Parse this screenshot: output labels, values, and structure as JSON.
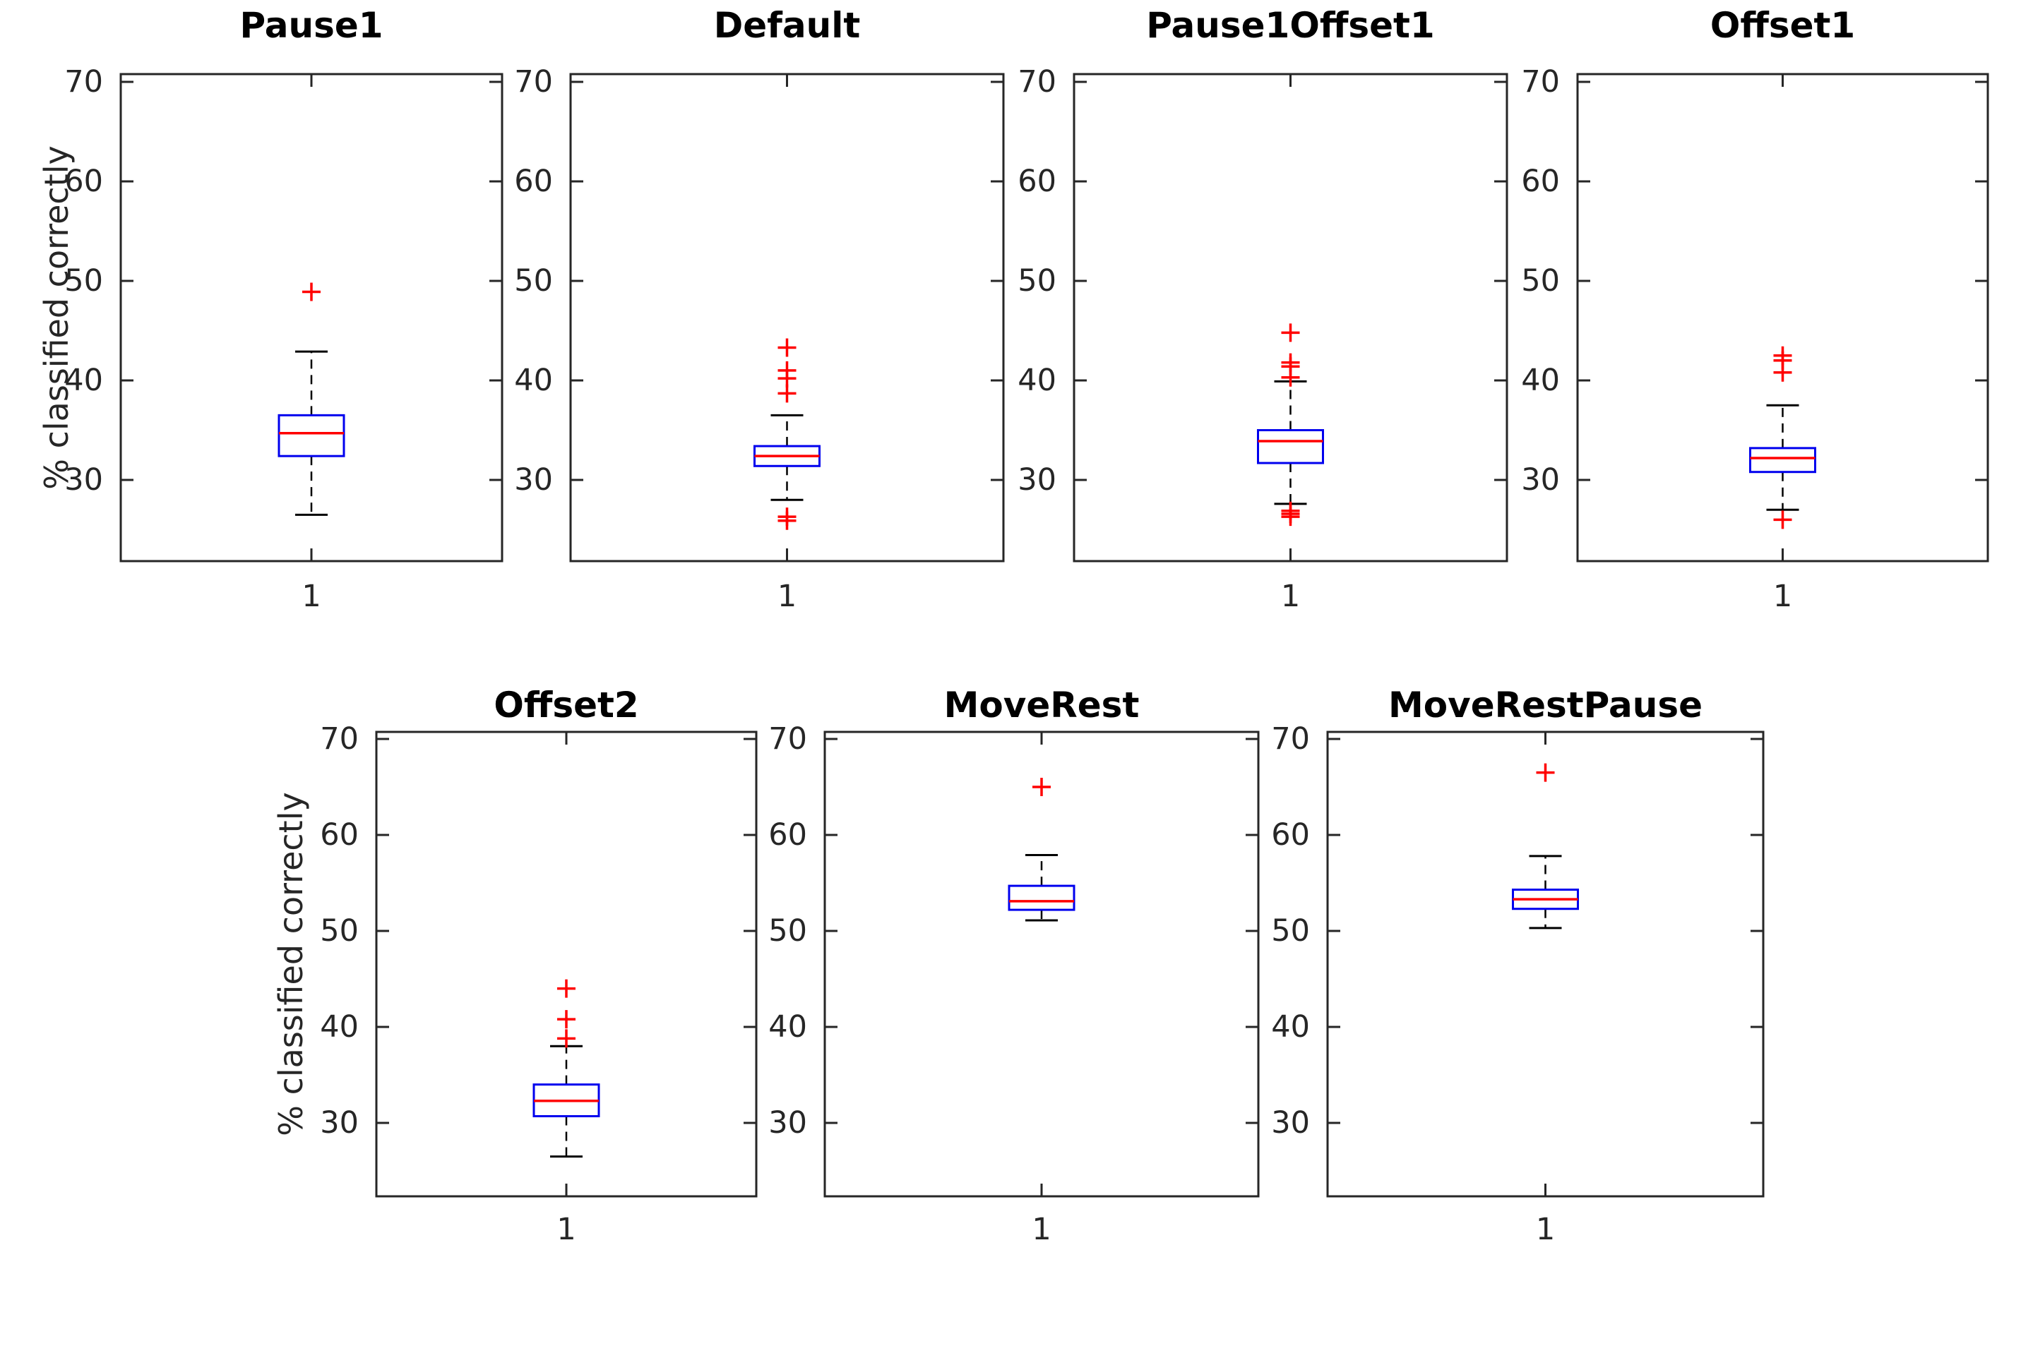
{
  "figure": {
    "background": "#ffffff",
    "axis_color": "#262626",
    "text_color": "#262626",
    "title_color": "#000000",
    "box_color": "#0000ee",
    "median_color": "#ff0000",
    "outlier_color": "#ff0000",
    "whisker_color": "#000000",
    "ylabel": "% classified correctly",
    "xtick_label": "1",
    "ytick_labels": [
      "70",
      "60",
      "50",
      "40",
      "30"
    ]
  },
  "chart_data": [
    {
      "type": "boxplot",
      "title": "Pause1",
      "x": 1,
      "xtick_label": "1",
      "ylabel": "% classified correctly",
      "ylim": [
        21.8,
        70.8
      ],
      "yticks": [
        30,
        40,
        50,
        60,
        70
      ],
      "grid": false,
      "median": 34.7,
      "q1": 32.4,
      "q3": 36.5,
      "whisker_low": 26.5,
      "whisker_high": 42.9,
      "outliers": [
        48.9
      ]
    },
    {
      "type": "boxplot",
      "title": "Default",
      "x": 1,
      "xtick_label": "1",
      "ylabel": "",
      "ylim": [
        21.8,
        70.8
      ],
      "yticks": [
        30,
        40,
        50,
        60,
        70
      ],
      "grid": false,
      "median": 32.4,
      "q1": 31.4,
      "q3": 33.4,
      "whisker_low": 28.0,
      "whisker_high": 36.5,
      "outliers": [
        43.3,
        41.0,
        40.2,
        38.7,
        26.3,
        25.9
      ]
    },
    {
      "type": "boxplot",
      "title": "Pause1Offset1",
      "x": 1,
      "xtick_label": "1",
      "ylabel": "",
      "ylim": [
        21.8,
        70.8
      ],
      "yticks": [
        30,
        40,
        50,
        60,
        70
      ],
      "grid": false,
      "median": 33.9,
      "q1": 31.7,
      "q3": 35.0,
      "whisker_low": 27.6,
      "whisker_high": 39.9,
      "outliers": [
        44.8,
        41.8,
        41.4,
        40.3,
        26.9,
        26.6,
        26.3
      ]
    },
    {
      "type": "boxplot",
      "title": "Offset1",
      "x": 1,
      "xtick_label": "1",
      "ylabel": "",
      "ylim": [
        21.8,
        70.8
      ],
      "yticks": [
        30,
        40,
        50,
        60,
        70
      ],
      "grid": false,
      "median": 32.2,
      "q1": 30.8,
      "q3": 33.2,
      "whisker_low": 27.0,
      "whisker_high": 37.5,
      "outliers": [
        42.5,
        42.0,
        40.8,
        26.0
      ]
    },
    {
      "type": "boxplot",
      "title": "Offset2",
      "x": 1,
      "xtick_label": "1",
      "ylabel": "% classified correctly",
      "ylim": [
        21.8,
        70.8
      ],
      "yticks": [
        30,
        40,
        50,
        60,
        70
      ],
      "grid": false,
      "median": 32.3,
      "q1": 30.7,
      "q3": 34.0,
      "whisker_low": 26.5,
      "whisker_high": 38.0,
      "outliers": [
        44.0,
        40.8,
        38.8
      ]
    },
    {
      "type": "boxplot",
      "title": "MoveRest",
      "x": 1,
      "xtick_label": "1",
      "ylabel": "",
      "ylim": [
        21.8,
        70.8
      ],
      "yticks": [
        30,
        40,
        50,
        60,
        70
      ],
      "grid": false,
      "median": 53.1,
      "q1": 52.2,
      "q3": 54.7,
      "whisker_low": 51.1,
      "whisker_high": 57.9,
      "outliers": [
        65.0
      ]
    },
    {
      "type": "boxplot",
      "title": "MoveRestPause",
      "x": 1,
      "xtick_label": "1",
      "ylabel": "",
      "ylim": [
        21.8,
        70.8
      ],
      "yticks": [
        30,
        40,
        50,
        60,
        70
      ],
      "grid": false,
      "median": 53.3,
      "q1": 52.3,
      "q3": 54.3,
      "whisker_low": 50.3,
      "whisker_high": 57.8,
      "outliers": [
        66.5
      ]
    }
  ]
}
